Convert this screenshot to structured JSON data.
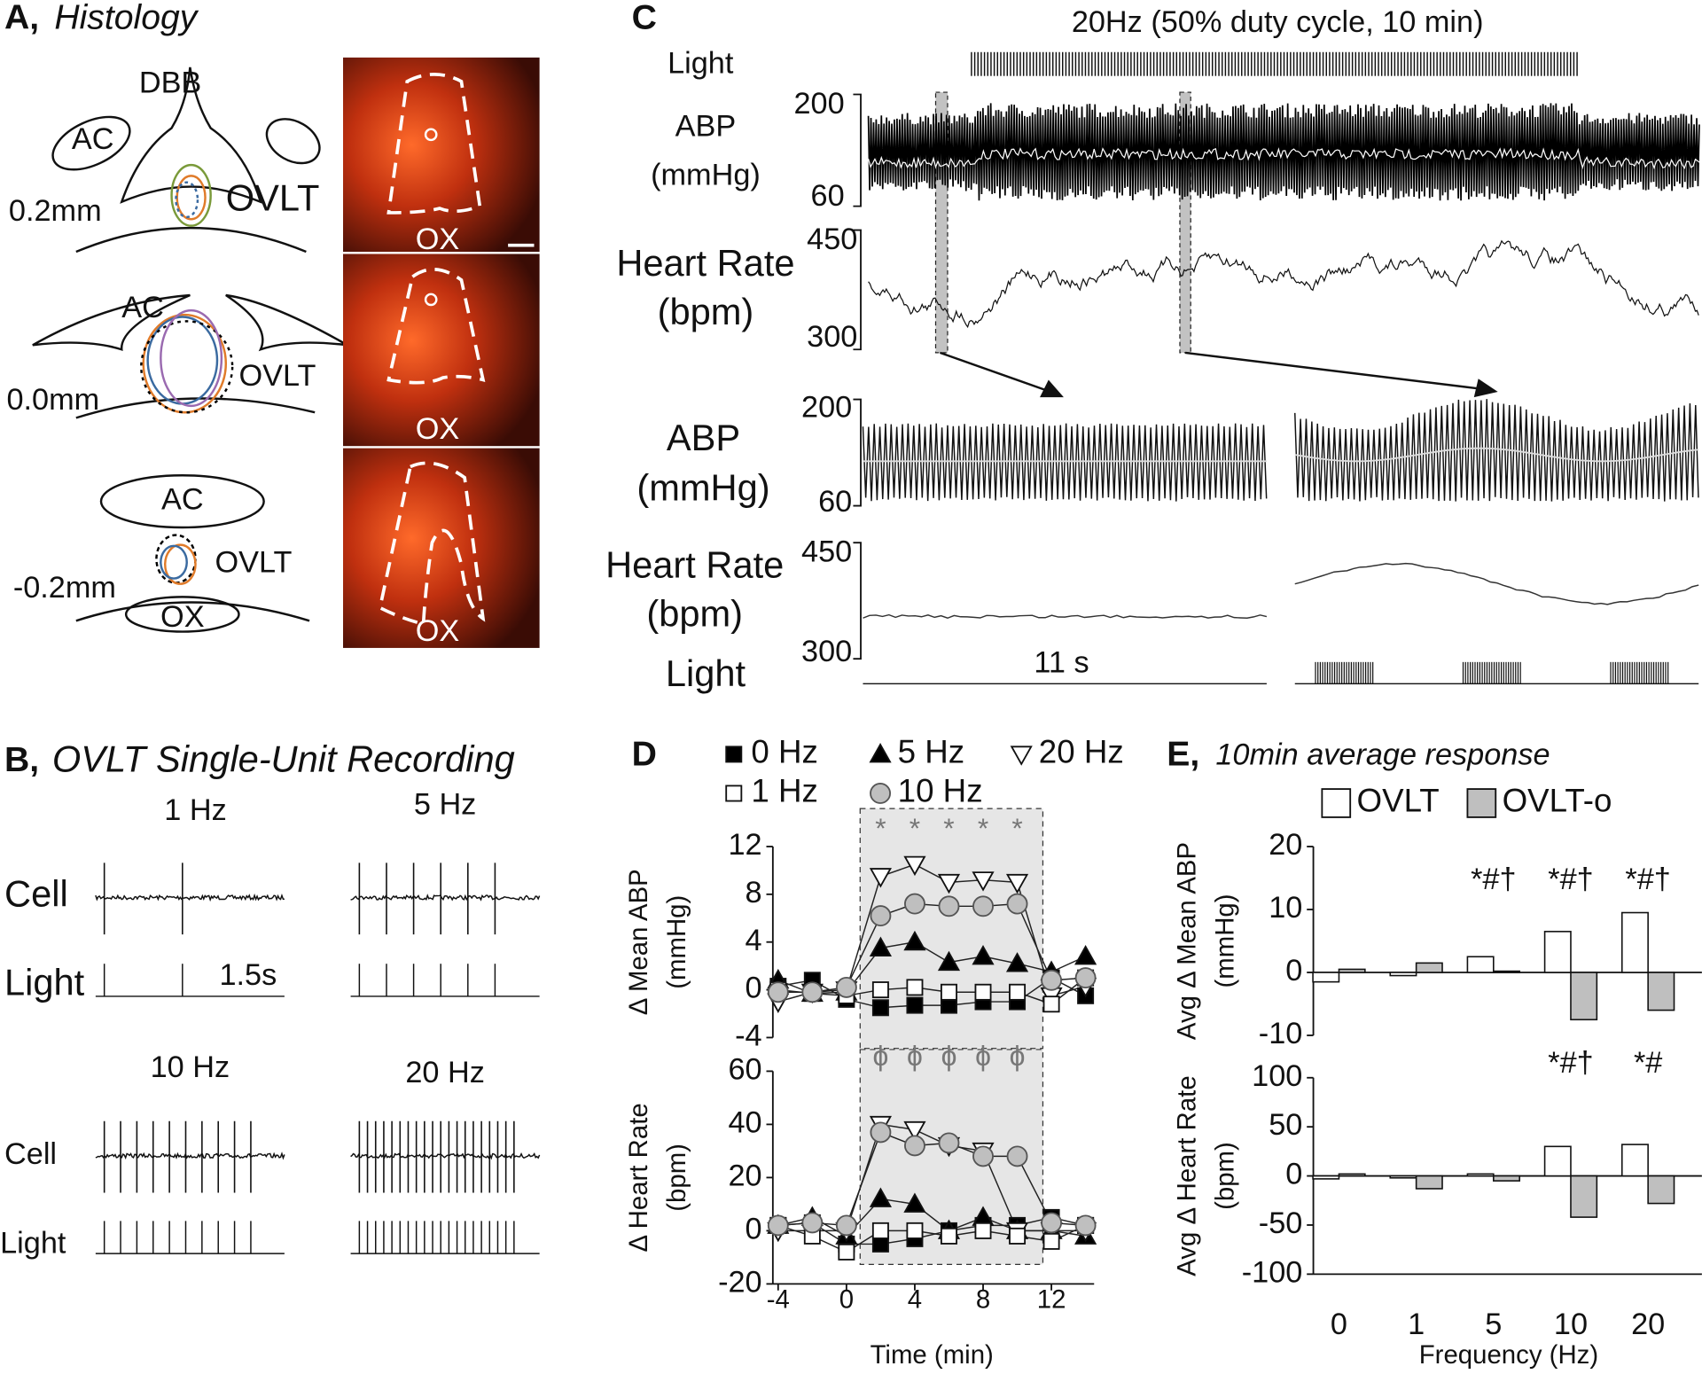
{
  "panels": {
    "A": {
      "label": "A,",
      "title": "Histology",
      "sections": [
        {
          "level": "0.2mm",
          "labels": [
            "DBB",
            "AC",
            "OVLT"
          ],
          "image_label": "OX"
        },
        {
          "level": "0.0mm",
          "labels": [
            "AC",
            "OVLT"
          ],
          "image_label": "OX"
        },
        {
          "level": "-0.2mm",
          "labels": [
            "AC",
            "OVLT",
            "OX"
          ],
          "image_label": "OX"
        }
      ]
    },
    "B": {
      "label": "B,",
      "title": "OVLT Single-Unit Recording",
      "recordings": [
        {
          "frequency": "1 Hz",
          "cell": "Cell",
          "light": "Light",
          "scale": "1.5s"
        },
        {
          "frequency": "5 Hz"
        },
        {
          "frequency": "10 Hz",
          "cell": "Cell",
          "light": "Light"
        },
        {
          "frequency": "20 Hz"
        }
      ]
    },
    "C": {
      "label": "C",
      "protocol": "20Hz (50% duty cycle, 10 min)",
      "overview": {
        "light": "Light",
        "abp_label": "ABP",
        "abp_unit": "(mmHg)",
        "abp_ticks": [
          200,
          60
        ],
        "hr_label": "Heart Rate",
        "hr_unit": "(bpm)",
        "hr_ticks": [
          450,
          300
        ]
      },
      "expanded": {
        "abp_label": "ABP",
        "abp_unit": "(mmHg)",
        "abp_ticks": [
          200,
          60
        ],
        "hr_label": "Heart Rate",
        "hr_unit": "(bpm)",
        "hr_ticks": [
          450,
          300
        ],
        "duration": "11 s",
        "light": "Light"
      }
    }
  },
  "chart_data": [
    {
      "type": "line",
      "panel_label": "D",
      "ylabel": "Δ Mean ABP",
      "ylabel_unit": "(mmHg)",
      "x": [
        -4,
        -2,
        0,
        2,
        4,
        6,
        8,
        10,
        12,
        14
      ],
      "xlim": [
        -4.5,
        14.5
      ],
      "ylim": [
        -4,
        12
      ],
      "yticks": [
        -4,
        0,
        4,
        8,
        12
      ],
      "shaded_x": [
        0.8,
        11.5
      ],
      "annotations": [
        null,
        null,
        null,
        "*",
        "*",
        "*",
        "*",
        "*",
        null,
        null
      ],
      "series": [
        {
          "name": "0 Hz",
          "marker": "square",
          "color": "#000000",
          "values": [
            0.3,
            0.8,
            -0.8,
            -1.5,
            -1.3,
            -1.3,
            -1,
            -1,
            1,
            -0.5
          ]
        },
        {
          "name": "5 Hz",
          "marker": "triangle-up",
          "color": "#000000",
          "values": [
            0.8,
            -0.3,
            -0.2,
            3.5,
            4,
            2.3,
            2.8,
            2.2,
            1.5,
            2.8
          ]
        },
        {
          "name": "20 Hz",
          "marker": "triangle-down",
          "color": "#ffffff",
          "values": [
            -1,
            -0.2,
            0,
            9.5,
            10.5,
            9,
            9.2,
            9,
            -0.5,
            0.3
          ]
        },
        {
          "name": "1 Hz",
          "marker": "square",
          "color": "#ffffff",
          "values": [
            0,
            -0.3,
            -0.5,
            0,
            0.2,
            -0.2,
            -0.2,
            -0.2,
            -1.2,
            1
          ]
        },
        {
          "name": "10 Hz",
          "marker": "circle",
          "color": "#bfbfbf",
          "values": [
            -0.2,
            -0.2,
            0.2,
            6.2,
            7.2,
            7,
            7,
            7.2,
            0.8,
            1
          ]
        }
      ]
    },
    {
      "type": "line",
      "ylabel": "Δ Heart Rate",
      "ylabel_unit": "(bpm)",
      "xlabel": "Time (min)",
      "x": [
        -4,
        -2,
        0,
        2,
        4,
        6,
        8,
        10,
        12,
        14
      ],
      "xlim": [
        -4.5,
        14.5
      ],
      "xticks": [
        -4,
        0,
        4,
        8,
        12
      ],
      "ylim": [
        -20,
        60
      ],
      "yticks": [
        -20,
        0,
        20,
        40,
        60
      ],
      "shaded_x": [
        0.8,
        11.5
      ],
      "annotations": [
        null,
        null,
        null,
        "ϕ",
        "ϕ",
        "ϕ",
        "ϕ",
        "ϕ",
        null,
        null
      ],
      "series": [
        {
          "marker": "square",
          "color": "#000000",
          "values": [
            2,
            3,
            -5,
            -5,
            -3,
            0,
            2,
            2,
            5,
            2
          ]
        },
        {
          "marker": "triangle-up",
          "color": "#000000",
          "values": [
            2,
            5,
            -2,
            12,
            10,
            0,
            5,
            0,
            0,
            -2
          ]
        },
        {
          "marker": "triangle-down",
          "color": "#ffffff",
          "values": [
            0,
            0,
            0,
            40,
            38,
            32,
            30,
            0,
            0,
            0
          ]
        },
        {
          "marker": "square",
          "color": "#ffffff",
          "values": [
            2,
            -2,
            -8,
            0,
            0,
            -2,
            0,
            -2,
            -4,
            2
          ]
        },
        {
          "marker": "circle",
          "color": "#bfbfbf",
          "values": [
            2,
            3,
            2,
            37,
            32,
            33,
            28,
            28,
            3,
            2
          ]
        }
      ]
    },
    {
      "type": "bar",
      "panel_label": "E,",
      "title": "10min average response",
      "ylabel": "Avg Δ Mean ABP",
      "ylabel_unit": "(mmHg)",
      "ylim": [
        -10,
        20
      ],
      "yticks": [
        -10,
        0,
        10,
        20
      ],
      "annotations": [
        null,
        null,
        "*#†",
        "*#†",
        "*#†"
      ],
      "series": [
        {
          "name": "OVLT",
          "color": "#ffffff",
          "values": [
            -1.5,
            -0.5,
            2.5,
            6.5,
            9.5
          ]
        },
        {
          "name": "OVLT-o",
          "color": "#bfbfbf",
          "values": [
            0.5,
            1.5,
            0.2,
            -7.5,
            -6
          ]
        }
      ]
    },
    {
      "type": "bar",
      "ylabel": "Avg Δ Heart Rate",
      "ylabel_unit": "(bpm)",
      "xlabel": "Frequency (Hz)",
      "categories": [
        "0",
        "1",
        "5",
        "10",
        "20"
      ],
      "ylim": [
        -100,
        100
      ],
      "yticks": [
        -100,
        -50,
        0,
        50,
        100
      ],
      "annotations": [
        null,
        null,
        null,
        "*#†",
        "*#"
      ],
      "series": [
        {
          "color": "#ffffff",
          "values": [
            -3,
            -2,
            2,
            30,
            32
          ]
        },
        {
          "color": "#bfbfbf",
          "values": [
            2,
            -13,
            -5,
            -42,
            -28
          ]
        }
      ]
    }
  ]
}
